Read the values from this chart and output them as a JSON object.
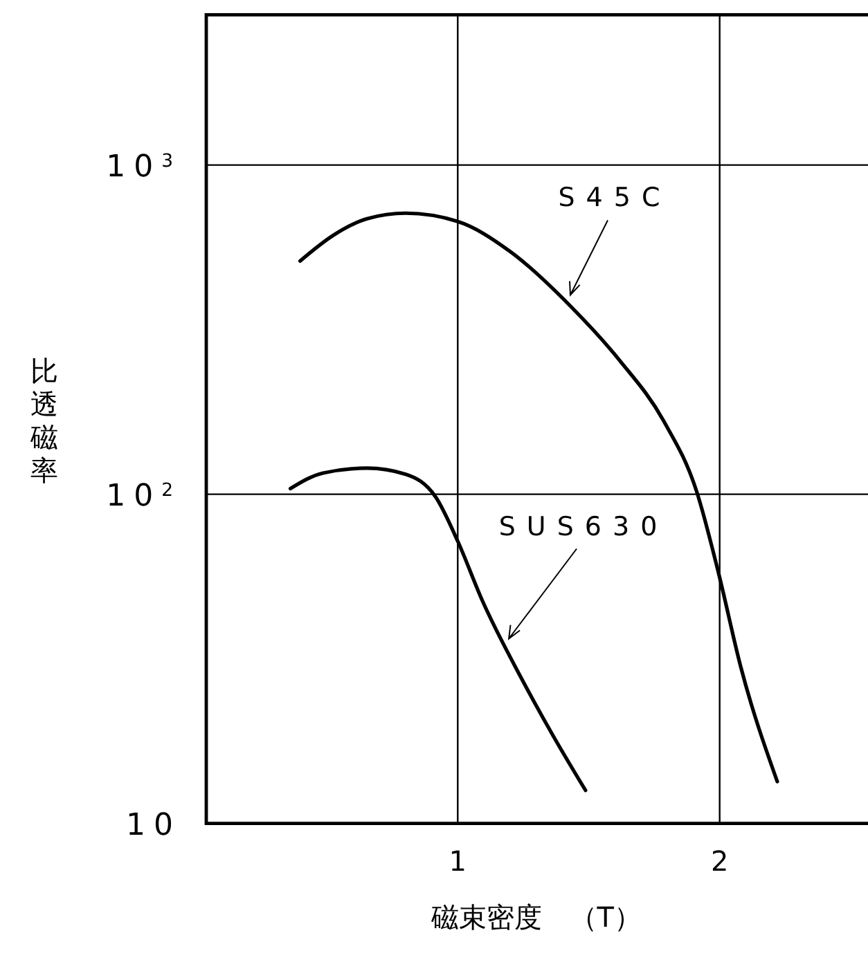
{
  "chart_data": {
    "type": "line",
    "xlabel": "磁束密度　（T）",
    "ylabel": "比透磁率",
    "xlim": [
      0.04,
      2.57
    ],
    "ylim": [
      10,
      2860
    ],
    "log": "y",
    "grid": true,
    "line_style": "solid",
    "xticks": [
      1,
      2
    ],
    "yticks": [
      {
        "value": 10,
        "label": "10"
      },
      {
        "value": 100,
        "label": "10$^{2}$"
      },
      {
        "value": 1000,
        "label": "10$^{3}$"
      }
    ],
    "series": [
      {
        "color": "#000000",
        "x": [
          0.398,
          0.528,
          0.654,
          0.801,
          1.0,
          1.199,
          1.43,
          1.618,
          1.786,
          1.912,
          1.996,
          2.08,
          2.22
        ],
        "values": [
          511,
          614,
          687,
          714,
          674,
          547,
          373,
          255,
          167,
          102,
          57.5,
          30,
          13.4
        ]
      },
      {
        "color": "#000000",
        "x": [
          0.361,
          0.486,
          0.654,
          0.801,
          0.916,
          1.0,
          1.094,
          1.241,
          1.367,
          1.488
        ],
        "values": [
          104,
          116,
          120,
          115,
          98,
          72,
          47.5,
          27.8,
          18.3,
          12.6
        ]
      }
    ],
    "annotations": [
      {
        "text": "S45C",
        "x": 1.43,
        "y": 403
      },
      {
        "text": "SUS630",
        "x": 1.195,
        "y": 36.4
      }
    ]
  }
}
